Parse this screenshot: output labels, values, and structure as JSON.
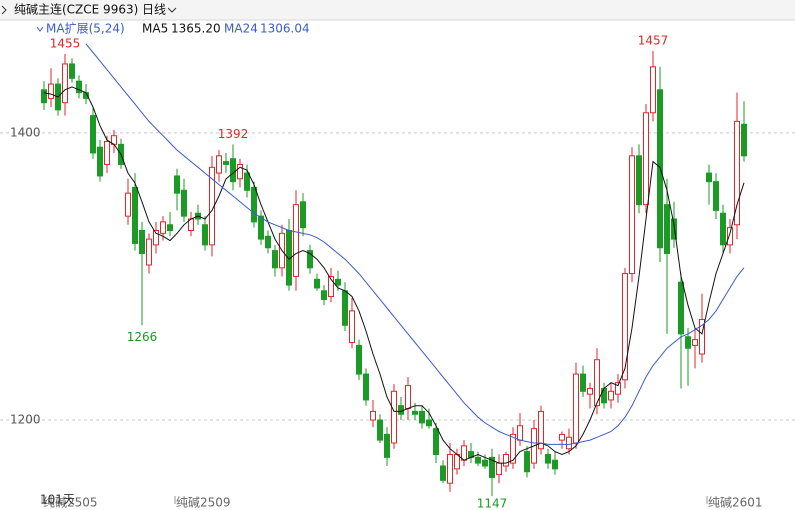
{
  "chart_data": {
    "type": "candlestick",
    "title": "纯碱主连(CZCE 9963)",
    "period": "日线",
    "indicator": "MA扩展(5,24)",
    "period_label": "101天",
    "up_color": "#e3262b",
    "down_color": "#1b9b26",
    "ylim": [
      1145,
      1480
    ],
    "yticks": [
      1200,
      1400
    ],
    "grid": true,
    "categories": [
      "纯碱2505",
      null,
      null,
      null,
      null,
      null,
      null,
      null,
      null,
      null,
      null,
      null,
      null,
      null,
      null,
      null,
      null,
      null,
      null,
      "纯碱2509",
      null,
      null,
      null,
      null,
      null,
      null,
      null,
      null,
      null,
      null,
      null,
      null,
      null,
      null,
      null,
      null,
      null,
      null,
      null,
      null,
      null,
      null,
      null,
      null,
      null,
      null,
      null,
      null,
      null,
      null,
      null,
      null,
      null,
      null,
      null,
      null,
      null,
      null,
      null,
      null,
      null,
      null,
      null,
      null,
      null,
      null,
      null,
      null,
      null,
      null,
      null,
      null,
      null,
      null,
      null,
      null,
      null,
      null,
      null,
      null,
      null,
      null,
      null,
      null,
      null,
      null,
      null,
      null,
      null,
      null,
      null,
      null,
      null,
      null,
      null,
      "纯碱2601",
      null,
      null,
      null,
      null,
      null
    ],
    "ohlc": [
      [
        1430,
        1436,
        1416,
        1421
      ],
      [
        1424,
        1445,
        1418,
        1434
      ],
      [
        1434,
        1438,
        1412,
        1416
      ],
      [
        1421,
        1455,
        1412,
        1448
      ],
      [
        1448,
        1452,
        1435,
        1438
      ],
      [
        1436,
        1440,
        1424,
        1428
      ],
      [
        1428,
        1434,
        1420,
        1424
      ],
      [
        1412,
        1418,
        1382,
        1386
      ],
      [
        1390,
        1395,
        1366,
        1370
      ],
      [
        1378,
        1398,
        1372,
        1394
      ],
      [
        1392,
        1402,
        1386,
        1398
      ],
      [
        1392,
        1396,
        1375,
        1378
      ],
      [
        1342,
        1368,
        1336,
        1358
      ],
      [
        1362,
        1372,
        1318,
        1323
      ],
      [
        1332,
        1338,
        1266,
        1316
      ],
      [
        1308,
        1330,
        1302,
        1326
      ],
      [
        1322,
        1338,
        1316,
        1332
      ],
      [
        1330,
        1342,
        1325,
        1338
      ],
      [
        1336,
        1345,
        1328,
        1332
      ],
      [
        1370,
        1375,
        1346,
        1358
      ],
      [
        1360,
        1368,
        1338,
        1342
      ],
      [
        1332,
        1345,
        1328,
        1340
      ],
      [
        1344,
        1350,
        1336,
        1340
      ],
      [
        1336,
        1342,
        1318,
        1322
      ],
      [
        1322,
        1384,
        1314,
        1376
      ],
      [
        1372,
        1388,
        1366,
        1384
      ],
      [
        1380,
        1386,
        1372,
        1378
      ],
      [
        1382,
        1392,
        1360,
        1366
      ],
      [
        1368,
        1382,
        1362,
        1378
      ],
      [
        1372,
        1378,
        1355,
        1360
      ],
      [
        1362,
        1366,
        1334,
        1338
      ],
      [
        1342,
        1346,
        1322,
        1326
      ],
      [
        1328,
        1332,
        1316,
        1320
      ],
      [
        1318,
        1322,
        1300,
        1306
      ],
      [
        1306,
        1336,
        1300,
        1330
      ],
      [
        1332,
        1340,
        1290,
        1294
      ],
      [
        1300,
        1360,
        1290,
        1350
      ],
      [
        1352,
        1358,
        1328,
        1334
      ],
      [
        1318,
        1322,
        1302,
        1306
      ],
      [
        1298,
        1302,
        1290,
        1292
      ],
      [
        1290,
        1294,
        1280,
        1284
      ],
      [
        1286,
        1306,
        1282,
        1300
      ],
      [
        1298,
        1304,
        1290,
        1294
      ],
      [
        1290,
        1296,
        1262,
        1266
      ],
      [
        1254,
        1285,
        1250,
        1276
      ],
      [
        1252,
        1256,
        1228,
        1232
      ],
      [
        1232,
        1236,
        1210,
        1214
      ],
      [
        1200,
        1214,
        1195,
        1206
      ],
      [
        1200,
        1204,
        1184,
        1186
      ],
      [
        1190,
        1195,
        1168,
        1174
      ],
      [
        1184,
        1225,
        1180,
        1220
      ],
      [
        1210,
        1216,
        1200,
        1204
      ],
      [
        1208,
        1230,
        1200,
        1224
      ],
      [
        1206,
        1212,
        1200,
        1204
      ],
      [
        1206,
        1210,
        1194,
        1198
      ],
      [
        1200,
        1208,
        1194,
        1196
      ],
      [
        1194,
        1198,
        1170,
        1176
      ],
      [
        1168,
        1172,
        1156,
        1158
      ],
      [
        1156,
        1184,
        1150,
        1176
      ],
      [
        1166,
        1180,
        1162,
        1176
      ],
      [
        1172,
        1186,
        1168,
        1182
      ],
      [
        1178,
        1184,
        1170,
        1174
      ],
      [
        1174,
        1178,
        1168,
        1170
      ],
      [
        1172,
        1176,
        1166,
        1168
      ],
      [
        1174,
        1180,
        1147,
        1160
      ],
      [
        1162,
        1176,
        1156,
        1170
      ],
      [
        1168,
        1178,
        1164,
        1176
      ],
      [
        1170,
        1195,
        1166,
        1190
      ],
      [
        1186,
        1205,
        1182,
        1196
      ],
      [
        1178,
        1182,
        1160,
        1164
      ],
      [
        1170,
        1200,
        1166,
        1194
      ],
      [
        1180,
        1210,
        1176,
        1206
      ],
      [
        1176,
        1180,
        1166,
        1170
      ],
      [
        1172,
        1178,
        1162,
        1166
      ],
      [
        1186,
        1192,
        1180,
        1190
      ],
      [
        1180,
        1194,
        1176,
        1188
      ],
      [
        1184,
        1240,
        1180,
        1232
      ],
      [
        1232,
        1238,
        1216,
        1220
      ],
      [
        1218,
        1226,
        1208,
        1222
      ],
      [
        1210,
        1250,
        1204,
        1242
      ],
      [
        1222,
        1226,
        1208,
        1212
      ],
      [
        1214,
        1226,
        1208,
        1220
      ],
      [
        1218,
        1232,
        1212,
        1226
      ],
      [
        1228,
        1306,
        1222,
        1302
      ],
      [
        1302,
        1390,
        1296,
        1384
      ],
      [
        1384,
        1392,
        1344,
        1350
      ],
      [
        1350,
        1420,
        1344,
        1414
      ],
      [
        1414,
        1457,
        1408,
        1446
      ],
      [
        1430,
        1446,
        1310,
        1320
      ],
      [
        1350,
        1368,
        1260,
        1316
      ],
      [
        1340,
        1352,
        1320,
        1326
      ],
      [
        1296,
        1302,
        1222,
        1260
      ],
      [
        1258,
        1264,
        1224,
        1250
      ],
      [
        1252,
        1264,
        1236,
        1256
      ],
      [
        1246,
        1288,
        1240,
        1270
      ],
      [
        1372,
        1378,
        1350,
        1366
      ],
      [
        1366,
        1372,
        1340,
        1346
      ],
      [
        1344,
        1350,
        1316,
        1322
      ],
      [
        1322,
        1340,
        1316,
        1334
      ],
      [
        1336,
        1428,
        1326,
        1408
      ],
      [
        1406,
        1422,
        1380,
        1384
      ]
    ],
    "high_labels": [
      null,
      null,
      null,
      1455,
      null,
      null,
      null,
      null,
      null,
      null,
      null,
      null,
      null,
      null,
      null,
      null,
      null,
      null,
      null,
      null,
      null,
      null,
      null,
      null,
      null,
      null,
      null,
      1392,
      null,
      null,
      null,
      null,
      null,
      null,
      null,
      null,
      null,
      null,
      null,
      null,
      null,
      null,
      null,
      null,
      null,
      null,
      null,
      null,
      null,
      null,
      null,
      null,
      null,
      null,
      null,
      null,
      null,
      null,
      null,
      null,
      null,
      null,
      null,
      null,
      null,
      null,
      null,
      null,
      null,
      null,
      null,
      null,
      null,
      null,
      null,
      null,
      null,
      null,
      null,
      null,
      null,
      null,
      null,
      null,
      null,
      null,
      null,
      1457,
      null,
      null,
      null,
      null,
      null,
      null,
      null,
      null,
      null,
      null,
      null,
      null,
      null
    ],
    "low_labels": [
      null,
      null,
      null,
      null,
      null,
      null,
      null,
      null,
      null,
      null,
      null,
      null,
      null,
      null,
      1266,
      null,
      null,
      null,
      null,
      null,
      null,
      null,
      null,
      null,
      null,
      null,
      null,
      null,
      null,
      null,
      null,
      null,
      null,
      null,
      null,
      null,
      null,
      null,
      null,
      null,
      null,
      null,
      null,
      null,
      null,
      null,
      null,
      null,
      null,
      null,
      null,
      null,
      null,
      null,
      null,
      null,
      null,
      null,
      null,
      null,
      null,
      null,
      null,
      null,
      1147,
      null,
      null,
      null,
      null,
      null,
      null,
      null,
      null,
      null,
      null,
      null,
      null,
      null,
      null,
      null,
      null,
      null,
      null,
      null,
      null,
      null,
      null,
      null,
      null,
      null,
      null,
      null,
      null,
      null,
      null,
      null,
      null,
      null,
      null,
      null,
      null
    ],
    "series": [
      {
        "name": "MA5",
        "color": "#111111",
        "value_label": "1365.20",
        "values": [
          1428,
          1427,
          1425,
          1430,
          1432,
          1430,
          1428,
          1418,
          1405,
          1395,
          1392,
          1385,
          1372,
          1365,
          1352,
          1338,
          1330,
          1328,
          1325,
          1330,
          1336,
          1340,
          1342,
          1340,
          1346,
          1356,
          1368,
          1372,
          1376,
          1374,
          1364,
          1350,
          1338,
          1326,
          1318,
          1312,
          1316,
          1318,
          1316,
          1312,
          1306,
          1298,
          1292,
          1290,
          1286,
          1276,
          1262,
          1246,
          1232,
          1216,
          1206,
          1206,
          1208,
          1210,
          1210,
          1205,
          1196,
          1186,
          1180,
          1176,
          1172,
          1174,
          1176,
          1174,
          1172,
          1170,
          1170,
          1172,
          1178,
          1180,
          1182,
          1184,
          1182,
          1178,
          1176,
          1178,
          1182,
          1190,
          1200,
          1212,
          1222,
          1226,
          1224,
          1236,
          1264,
          1300,
          1340,
          1380,
          1376,
          1360,
          1336,
          1300,
          1280,
          1264,
          1260,
          1282,
          1302,
          1316,
          1330,
          1350,
          1365.2
        ]
      },
      {
        "name": "MA24",
        "color": "#3a5ccc",
        "value_label": "1306.04",
        "values": [
          null,
          null,
          null,
          null,
          null,
          null,
          1462,
          1456,
          1450,
          1444,
          1438,
          1432,
          1426,
          1420,
          1414,
          1408,
          1403,
          1398,
          1393,
          1388,
          1384,
          1380,
          1376,
          1372,
          1368,
          1364,
          1360,
          1356,
          1352,
          1348,
          1344,
          1341,
          1338,
          1336,
          1334,
          1332,
          1331,
          1330,
          1329,
          1327,
          1324,
          1320,
          1316,
          1312,
          1307,
          1302,
          1296,
          1290,
          1284,
          1278,
          1272,
          1266,
          1260,
          1254,
          1248,
          1242,
          1236,
          1230,
          1224,
          1218,
          1212,
          1207,
          1202,
          1198,
          1195,
          1192,
          1190,
          1188,
          1186,
          1185,
          1184,
          1184,
          1183,
          1183,
          1183,
          1183,
          1184,
          1185,
          1186,
          1188,
          1190,
          1192,
          1196,
          1202,
          1210,
          1220,
          1230,
          1238,
          1244,
          1250,
          1254,
          1258,
          1260,
          1263,
          1266,
          1270,
          1276,
          1284,
          1292,
          1300,
          1306.04
        ]
      }
    ]
  }
}
